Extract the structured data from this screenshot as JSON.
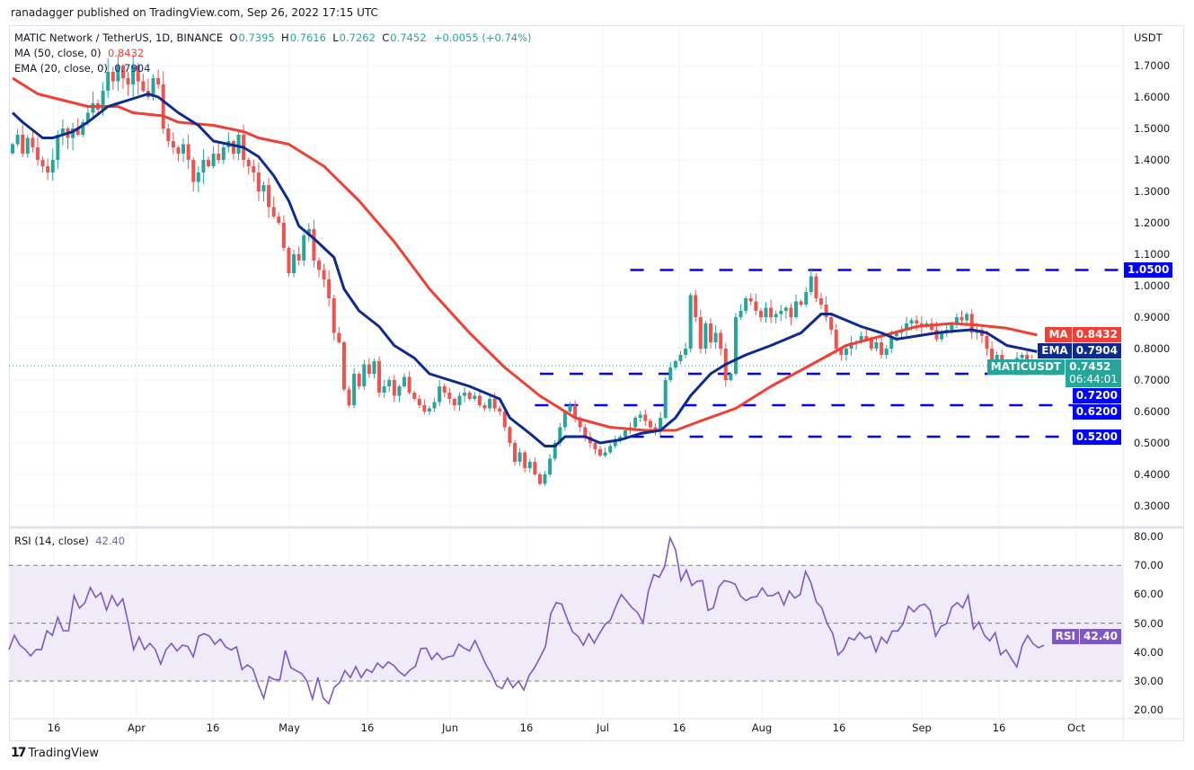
{
  "header": {
    "published": "ranadagger published on TradingView.com, Sep 26, 2022 17:15 UTC"
  },
  "legend": {
    "symbol": "MATIC Network / TetherUS, 1D, BINANCE",
    "open": "0.7395",
    "high": "0.7616",
    "low": "0.7262",
    "close": "0.7452",
    "change": "+0.0055 (+0.74%)",
    "ma_label": "MA (50, close, 0)",
    "ma_value": "0.8432",
    "ema_label": "EMA (20, close, 0)",
    "ema_value": "0.7904",
    "rsi_label": "RSI (14, close)",
    "rsi_value": "42.40"
  },
  "price_axis": {
    "currency": "USDT",
    "ticks": [
      "1.7000",
      "1.6000",
      "1.5000",
      "1.4000",
      "1.3000",
      "1.2000",
      "1.1000",
      "1.0000",
      "0.9000",
      "0.8000",
      "0.7000",
      "0.6000",
      "0.5000",
      "0.4000",
      "0.3000"
    ]
  },
  "rsi_axis": {
    "ticks": [
      "80.00",
      "70.00",
      "60.00",
      "50.00",
      "40.00",
      "30.00",
      "20.00"
    ]
  },
  "time_axis": {
    "ticks": [
      "16",
      "Apr",
      "16",
      "May",
      "16",
      "Jun",
      "16",
      "Jul",
      "16",
      "Aug",
      "16",
      "Sep",
      "16",
      "Oct"
    ]
  },
  "badges": {
    "ma": {
      "label": "MA",
      "value": "0.8432"
    },
    "ema": {
      "label": "EMA",
      "value": "0.7904"
    },
    "symbol": {
      "label": "MATICUSDT",
      "value": "0.7452",
      "countdown": "06:44:01"
    },
    "levels": [
      "0.7200",
      "0.6200",
      "0.5200",
      "1.0500"
    ],
    "rsi": {
      "label": "RSI",
      "value": "42.40"
    }
  },
  "footer": {
    "brand": "TradingView"
  },
  "colors": {
    "up": "#26a69a",
    "down": "#ef5350",
    "ma": "#f23f33",
    "ema": "#0d2b8e",
    "levels": "#0000ff",
    "rsi": "#7e57c2",
    "rsi_band": "#efebf8"
  },
  "chart_data": [
    {
      "type": "candlestick",
      "first_date": "2022-03-06",
      "ylim": [
        0.27,
        1.78
      ],
      "grid": true,
      "close": [
        1.45,
        1.48,
        1.42,
        1.47,
        1.44,
        1.4,
        1.38,
        1.36,
        1.4,
        1.48,
        1.5,
        1.47,
        1.5,
        1.48,
        1.52,
        1.55,
        1.58,
        1.56,
        1.62,
        1.68,
        1.65,
        1.7,
        1.66,
        1.64,
        1.7,
        1.65,
        1.62,
        1.6,
        1.66,
        1.64,
        1.5,
        1.46,
        1.44,
        1.42,
        1.45,
        1.4,
        1.33,
        1.36,
        1.4,
        1.38,
        1.42,
        1.4,
        1.44,
        1.46,
        1.42,
        1.48,
        1.4,
        1.38,
        1.36,
        1.3,
        1.32,
        1.25,
        1.22,
        1.2,
        1.12,
        1.04,
        1.1,
        1.08,
        1.16,
        1.18,
        1.08,
        1.05,
        1.02,
        0.96,
        0.85,
        0.82,
        0.67,
        0.62,
        0.72,
        0.68,
        0.75,
        0.72,
        0.76,
        0.66,
        0.68,
        0.7,
        0.65,
        0.68,
        0.71,
        0.66,
        0.64,
        0.62,
        0.6,
        0.61,
        0.63,
        0.68,
        0.66,
        0.64,
        0.62,
        0.65,
        0.66,
        0.64,
        0.65,
        0.62,
        0.61,
        0.64,
        0.61,
        0.6,
        0.55,
        0.5,
        0.44,
        0.47,
        0.42,
        0.44,
        0.4,
        0.37,
        0.4,
        0.45,
        0.5,
        0.55,
        0.6,
        0.62,
        0.58,
        0.55,
        0.52,
        0.5,
        0.48,
        0.46,
        0.47,
        0.49,
        0.51,
        0.52,
        0.54,
        0.55,
        0.58,
        0.59,
        0.57,
        0.55,
        0.54,
        0.58,
        0.7,
        0.74,
        0.76,
        0.78,
        0.8,
        0.97,
        0.9,
        0.8,
        0.88,
        0.82,
        0.85,
        0.8,
        0.7,
        0.72,
        0.9,
        0.92,
        0.96,
        0.95,
        0.92,
        0.9,
        0.93,
        0.9,
        0.91,
        0.92,
        0.93,
        0.9,
        0.95,
        0.94,
        0.98,
        1.03,
        0.96,
        0.94,
        0.9,
        0.86,
        0.8,
        0.78,
        0.8,
        0.82,
        0.82,
        0.84,
        0.83,
        0.8,
        0.82,
        0.78,
        0.8,
        0.84,
        0.85,
        0.86,
        0.88,
        0.89,
        0.88,
        0.87,
        0.88,
        0.86,
        0.83,
        0.85,
        0.86,
        0.88,
        0.9,
        0.89,
        0.91,
        0.85,
        0.86,
        0.84,
        0.8,
        0.76,
        0.78,
        0.75,
        0.73,
        0.74,
        0.77,
        0.78,
        0.76,
        0.7395,
        0.7452
      ],
      "last_candle": {
        "open": 0.7395,
        "high": 0.7616,
        "low": 0.7262,
        "close": 0.7452
      },
      "ma50": [
        [
          "2022-03-06",
          1.66
        ],
        [
          "2022-03-11",
          1.61
        ],
        [
          "2022-03-16",
          1.59
        ],
        [
          "2022-03-21",
          1.57
        ],
        [
          "2022-03-27",
          1.57
        ],
        [
          "2022-03-30",
          1.55
        ],
        [
          "2022-04-05",
          1.54
        ],
        [
          "2022-04-08",
          1.52
        ],
        [
          "2022-04-15",
          1.51
        ],
        [
          "2022-04-21",
          1.49
        ],
        [
          "2022-04-24",
          1.47
        ],
        [
          "2022-04-30",
          1.45
        ],
        [
          "2022-05-07",
          1.38
        ],
        [
          "2022-05-14",
          1.27
        ],
        [
          "2022-05-21",
          1.14
        ],
        [
          "2022-05-28",
          0.99
        ],
        [
          "2022-06-05",
          0.85
        ],
        [
          "2022-06-12",
          0.74
        ],
        [
          "2022-06-19",
          0.65
        ],
        [
          "2022-06-26",
          0.58
        ],
        [
          "2022-07-03",
          0.55
        ],
        [
          "2022-07-10",
          0.54
        ],
        [
          "2022-07-16",
          0.54
        ],
        [
          "2022-07-21",
          0.57
        ],
        [
          "2022-07-28",
          0.61
        ],
        [
          "2022-08-04",
          0.68
        ],
        [
          "2022-08-11",
          0.74
        ],
        [
          "2022-08-19",
          0.81
        ],
        [
          "2022-08-26",
          0.84
        ],
        [
          "2022-09-02",
          0.87
        ],
        [
          "2022-09-09",
          0.88
        ],
        [
          "2022-09-14",
          0.875
        ],
        [
          "2022-09-20",
          0.865
        ],
        [
          "2022-09-26",
          0.8432
        ]
      ],
      "ema20": [
        [
          "2022-03-06",
          1.55
        ],
        [
          "2022-03-08",
          1.52
        ],
        [
          "2022-03-12",
          1.47
        ],
        [
          "2022-03-14",
          1.47
        ],
        [
          "2022-03-18",
          1.49
        ],
        [
          "2022-03-21",
          1.52
        ],
        [
          "2022-03-25",
          1.57
        ],
        [
          "2022-03-29",
          1.59
        ],
        [
          "2022-04-02",
          1.61
        ],
        [
          "2022-04-04",
          1.6
        ],
        [
          "2022-04-08",
          1.55
        ],
        [
          "2022-04-12",
          1.51
        ],
        [
          "2022-04-15",
          1.46
        ],
        [
          "2022-04-21",
          1.44
        ],
        [
          "2022-04-24",
          1.41
        ],
        [
          "2022-04-27",
          1.35
        ],
        [
          "2022-04-30",
          1.27
        ],
        [
          "2022-05-02",
          1.19
        ],
        [
          "2022-05-05",
          1.15
        ],
        [
          "2022-05-09",
          1.09
        ],
        [
          "2022-05-11",
          0.99
        ],
        [
          "2022-05-14",
          0.92
        ],
        [
          "2022-05-18",
          0.87
        ],
        [
          "2022-05-21",
          0.81
        ],
        [
          "2022-05-25",
          0.77
        ],
        [
          "2022-05-28",
          0.72
        ],
        [
          "2022-06-01",
          0.7
        ],
        [
          "2022-06-05",
          0.68
        ],
        [
          "2022-06-08",
          0.66
        ],
        [
          "2022-06-11",
          0.64
        ],
        [
          "2022-06-13",
          0.58
        ],
        [
          "2022-06-17",
          0.53
        ],
        [
          "2022-06-20",
          0.49
        ],
        [
          "2022-06-22",
          0.49
        ],
        [
          "2022-06-24",
          0.52
        ],
        [
          "2022-06-28",
          0.52
        ],
        [
          "2022-07-01",
          0.5
        ],
        [
          "2022-07-05",
          0.51
        ],
        [
          "2022-07-09",
          0.53
        ],
        [
          "2022-07-13",
          0.54
        ],
        [
          "2022-07-16",
          0.58
        ],
        [
          "2022-07-19",
          0.65
        ],
        [
          "2022-07-23",
          0.72
        ],
        [
          "2022-07-26",
          0.75
        ],
        [
          "2022-07-30",
          0.78
        ],
        [
          "2022-08-04",
          0.81
        ],
        [
          "2022-08-10",
          0.85
        ],
        [
          "2022-08-14",
          0.91
        ],
        [
          "2022-08-16",
          0.91
        ],
        [
          "2022-08-19",
          0.89
        ],
        [
          "2022-08-22",
          0.87
        ],
        [
          "2022-08-26",
          0.85
        ],
        [
          "2022-08-29",
          0.83
        ],
        [
          "2022-09-02",
          0.84
        ],
        [
          "2022-09-06",
          0.85
        ],
        [
          "2022-09-09",
          0.855
        ],
        [
          "2022-09-13",
          0.86
        ],
        [
          "2022-09-16",
          0.85
        ],
        [
          "2022-09-20",
          0.81
        ],
        [
          "2022-09-26",
          0.7904
        ]
      ],
      "levels": [
        {
          "price": 1.05,
          "from": "2022-07-07"
        },
        {
          "price": 0.72,
          "from": "2022-06-19"
        },
        {
          "price": 0.62,
          "from": "2022-06-18"
        },
        {
          "price": 0.52,
          "from": "2022-07-07"
        }
      ]
    },
    {
      "type": "line",
      "title": "RSI (14, close)",
      "ylim": [
        18,
        84
      ],
      "band": [
        30,
        70
      ],
      "midline": 50,
      "values": [
        40.9,
        45.8,
        42.4,
        40.9,
        38.7,
        40.9,
        40.9,
        47.4,
        45.8,
        52,
        47.4,
        47.4,
        59.5,
        55.2,
        57,
        62.3,
        58.9,
        60.5,
        54.5,
        59.5,
        56,
        58.4,
        50.2,
        40.9,
        45.2,
        40.9,
        43,
        40.9,
        35.9,
        40.9,
        43,
        40.4,
        42.4,
        42,
        38.4,
        45.5,
        46.4,
        45.5,
        42.7,
        44.5,
        41.8,
        40.7,
        41.8,
        34,
        35.6,
        34.2,
        28.8,
        24.1,
        31.5,
        30.5,
        30.5,
        40.6,
        34.7,
        33.6,
        32.6,
        30,
        23.8,
        31.2,
        24.1,
        22.2,
        27.8,
        29.4,
        33.6,
        31.2,
        35,
        31.2,
        34,
        33,
        36.2,
        34.5,
        36.6,
        35.4,
        33.2,
        31.8,
        33.8,
        35.1,
        41.2,
        41.4,
        37.5,
        39.7,
        37.5,
        38.4,
        38.7,
        42.7,
        41.4,
        40.4,
        44,
        40,
        35.7,
        32.6,
        28.4,
        27.4,
        31,
        27.7,
        30,
        26.9,
        32,
        34.6,
        38.2,
        41.9,
        53.4,
        57.1,
        56.6,
        51.6,
        47,
        45.5,
        42.4,
        46.3,
        43.1,
        46.5,
        49.6,
        51.1,
        55.8,
        59.9,
        57.6,
        55.3,
        53.7,
        50.1,
        61.1,
        66.8,
        65.9,
        69.6,
        79.5,
        75.4,
        64.7,
        68.4,
        63,
        64.5,
        64.7,
        54.4,
        55.3,
        62.5,
        64.7,
        64.3,
        63.5,
        59.4,
        57.8,
        58.9,
        59.2,
        62.2,
        59.4,
        59.6,
        60.7,
        56.3,
        61.1,
        58.7,
        59.9,
        67.9,
        64,
        57.3,
        55.3,
        49.8,
        46.5,
        39,
        40.8,
        45,
        44.2,
        46.8,
        44.7,
        45.5,
        40.1,
        45.2,
        43.1,
        47.3,
        47.3,
        49.8,
        55.8,
        53.9,
        56,
        56.6,
        54.4,
        45.5,
        48.9,
        49.8,
        55.6,
        57.1,
        55.3,
        59.6,
        48,
        50.4,
        45.8,
        43.9,
        46.7,
        39.1,
        40.8,
        37.7,
        34.9,
        42.4,
        45.7,
        42.9,
        41.5,
        42.4
      ]
    }
  ]
}
